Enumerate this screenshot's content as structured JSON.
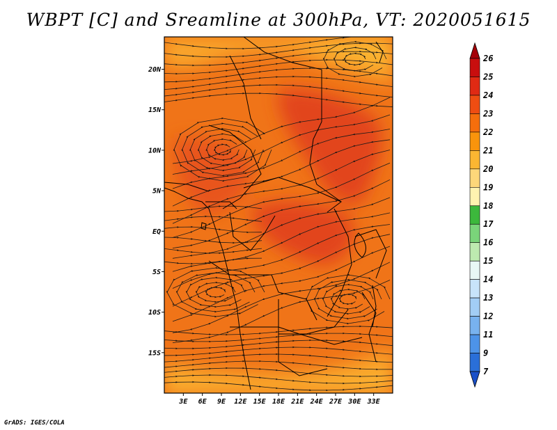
{
  "title": "WBPT [C] and Sreamline at 300hPa, VT: 2020051615",
  "credit": "GrADS: IGES/COLA",
  "map": {
    "lon_range": [
      0,
      36
    ],
    "lat_range": [
      -20,
      24
    ],
    "x_ticks": [
      "3E",
      "6E",
      "9E",
      "12E",
      "15E",
      "18E",
      "21E",
      "24E",
      "27E",
      "30E",
      "33E"
    ],
    "x_tick_values": [
      3,
      6,
      9,
      12,
      15,
      18,
      21,
      24,
      27,
      30,
      33
    ],
    "y_ticks": [
      "20N",
      "15N",
      "10N",
      "5N",
      "EQ",
      "5S",
      "10S",
      "15S"
    ],
    "y_tick_values": [
      20,
      15,
      10,
      5,
      0,
      -5,
      -10,
      -15
    ]
  },
  "colorbar": {
    "labels": [
      "26",
      "25",
      "24",
      "23",
      "22",
      "21",
      "20",
      "19",
      "18",
      "17",
      "16",
      "15",
      "14",
      "13",
      "12",
      "11",
      "9",
      "7"
    ],
    "colors": [
      "#a50008",
      "#c80e0e",
      "#e02a14",
      "#ef4d12",
      "#f56e0c",
      "#f9940c",
      "#fbb632",
      "#fdd77a",
      "#fff3b0",
      "#3cb83c",
      "#7ad47a",
      "#bdeab0",
      "#e8f8f5",
      "#c8e4fa",
      "#a2cdf5",
      "#78b2ef",
      "#4d93e8",
      "#2a6fd8",
      "#1a50c8"
    ]
  },
  "colors": {
    "base_field": "#f07418",
    "warm_field": "#e8541a",
    "cool_field": "#f9a52a",
    "streamline": "#1a1a1a",
    "border": "#000000"
  }
}
